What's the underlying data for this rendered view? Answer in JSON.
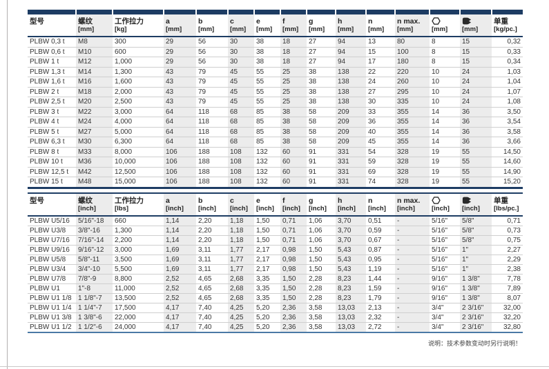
{
  "note": "说明：技术参数变动时另行说明！",
  "tables": [
    {
      "name": "metric",
      "segmented_top_bar": true,
      "columns": [
        {
          "id": "model",
          "label": "型号",
          "unit": ""
        },
        {
          "id": "thread",
          "label": "螺纹",
          "unit": "[mm]"
        },
        {
          "id": "working-load",
          "label": "工作拉力",
          "unit": "[kg]"
        },
        {
          "id": "a",
          "label": "a",
          "unit": "[mm]"
        },
        {
          "id": "b",
          "label": "b",
          "unit": "[mm]"
        },
        {
          "id": "c",
          "label": "c",
          "unit": "[mm]"
        },
        {
          "id": "e",
          "label": "e",
          "unit": "[mm]"
        },
        {
          "id": "f",
          "label": "f",
          "unit": "[mm]"
        },
        {
          "id": "g",
          "label": "g",
          "unit": "[mm]"
        },
        {
          "id": "h",
          "label": "h",
          "unit": "[mm]"
        },
        {
          "id": "n",
          "label": "n",
          "unit": "[mm]"
        },
        {
          "id": "n-max",
          "label": "n max.",
          "unit": "[mm]"
        },
        {
          "id": "hex-socket",
          "icon": "hexagon",
          "unit": "[mm]"
        },
        {
          "id": "wrench-size",
          "icon": "wrench",
          "unit": "[mm]"
        },
        {
          "id": "unit-weight",
          "label": "单重",
          "unit": "[kg/pc.]"
        }
      ],
      "rows": [
        [
          "PLBW 0,3 t",
          "M8",
          "300",
          "29",
          "56",
          "30",
          "38",
          "18",
          "27",
          "94",
          "13",
          "80",
          "8",
          "15",
          "0,32"
        ],
        [
          "PLBW 0,6 t",
          "M10",
          "600",
          "29",
          "56",
          "30",
          "38",
          "18",
          "27",
          "94",
          "15",
          "100",
          "8",
          "15",
          "0,33"
        ],
        [
          "PLBW 1 t",
          "M12",
          "1,000",
          "29",
          "56",
          "30",
          "38",
          "18",
          "27",
          "94",
          "17",
          "180",
          "8",
          "15",
          "0,34"
        ],
        [
          "PLBW 1,3 t",
          "M14",
          "1,300",
          "43",
          "79",
          "45",
          "55",
          "25",
          "38",
          "138",
          "22",
          "220",
          "10",
          "24",
          "1,03"
        ],
        [
          "PLBW 1,6 t",
          "M16",
          "1,600",
          "43",
          "79",
          "45",
          "55",
          "25",
          "38",
          "138",
          "24",
          "260",
          "10",
          "24",
          "1,04"
        ],
        [
          "PLBW 2 t",
          "M18",
          "2,000",
          "43",
          "79",
          "45",
          "55",
          "25",
          "38",
          "138",
          "27",
          "295",
          "10",
          "24",
          "1,07"
        ],
        [
          "PLBW 2,5 t",
          "M20",
          "2,500",
          "43",
          "79",
          "45",
          "55",
          "25",
          "38",
          "138",
          "30",
          "335",
          "10",
          "24",
          "1,08"
        ],
        [
          "PLBW 3 t",
          "M22",
          "3,000",
          "64",
          "118",
          "68",
          "85",
          "38",
          "58",
          "209",
          "33",
          "355",
          "14",
          "36",
          "3,50"
        ],
        [
          "PLBW 4 t",
          "M24",
          "4,000",
          "64",
          "118",
          "68",
          "85",
          "38",
          "58",
          "209",
          "36",
          "355",
          "14",
          "36",
          "3,54"
        ],
        [
          "PLBW 5 t",
          "M27",
          "5,000",
          "64",
          "118",
          "68",
          "85",
          "38",
          "58",
          "209",
          "40",
          "355",
          "14",
          "36",
          "3,58"
        ],
        [
          "PLBW 6,3 t",
          "M30",
          "6,300",
          "64",
          "118",
          "68",
          "85",
          "38",
          "58",
          "209",
          "45",
          "355",
          "14",
          "36",
          "3,66"
        ],
        [
          "PLBW 8 t",
          "M33",
          "8,000",
          "106",
          "188",
          "108",
          "132",
          "60",
          "91",
          "331",
          "54",
          "328",
          "19",
          "55",
          "14,50"
        ],
        [
          "PLBW 10 t",
          "M36",
          "10,000",
          "106",
          "188",
          "108",
          "132",
          "60",
          "91",
          "331",
          "59",
          "328",
          "19",
          "55",
          "14,60"
        ],
        [
          "PLBW 12,5 t",
          "M42",
          "12,500",
          "106",
          "188",
          "108",
          "132",
          "60",
          "91",
          "331",
          "69",
          "328",
          "19",
          "55",
          "14,90"
        ],
        [
          "PLBW 15 t",
          "M48",
          "15,000",
          "106",
          "188",
          "108",
          "132",
          "60",
          "91",
          "331",
          "74",
          "328",
          "19",
          "55",
          "15,20"
        ]
      ]
    },
    {
      "name": "imperial",
      "segmented_top_bar": false,
      "columns": [
        {
          "id": "model",
          "label": "型号",
          "unit": ""
        },
        {
          "id": "thread",
          "label": "螺纹",
          "unit": "[inch]"
        },
        {
          "id": "working-load",
          "label": "工作拉力",
          "unit": "[lbs]"
        },
        {
          "id": "a",
          "label": "a",
          "unit": "[inch]"
        },
        {
          "id": "b",
          "label": "b",
          "unit": "[inch]"
        },
        {
          "id": "c",
          "label": "c",
          "unit": "[inch]"
        },
        {
          "id": "e",
          "label": "e",
          "unit": "[inch]"
        },
        {
          "id": "f",
          "label": "f",
          "unit": "[inch]"
        },
        {
          "id": "g",
          "label": "g",
          "unit": "[inch]"
        },
        {
          "id": "h",
          "label": "h",
          "unit": "[inch]"
        },
        {
          "id": "n",
          "label": "n",
          "unit": "[inch]"
        },
        {
          "id": "n-max",
          "label": "n max.",
          "unit": "[inch]"
        },
        {
          "id": "hex-socket",
          "icon": "hexagon",
          "unit": "[inch]"
        },
        {
          "id": "wrench-size",
          "icon": "wrench",
          "unit": "[inch]"
        },
        {
          "id": "unit-weight",
          "label": "单重",
          "unit": "[lbs/pc.]"
        }
      ],
      "rows": [
        [
          "PLBW U5/16",
          "5/16\"-18",
          "660",
          "1,14",
          "2,20",
          "1,18",
          "1,50",
          "0,71",
          "1,06",
          "3,70",
          "0,51",
          "-",
          "5/16\"",
          "5/8\"",
          "0,71"
        ],
        [
          "PLBW U3/8",
          "3/8\"-16",
          "1,300",
          "1,14",
          "2,20",
          "1,18",
          "1,50",
          "0,71",
          "1,06",
          "3,70",
          "0,59",
          "-",
          "5/16\"",
          "5/8\"",
          "0,73"
        ],
        [
          "PLBW U7/16",
          "7/16\"-14",
          "2,200",
          "1,14",
          "2,20",
          "1,18",
          "1,50",
          "0,71",
          "1,06",
          "3,70",
          "0,67",
          "-",
          "5/16\"",
          "5/8\"",
          "0,75"
        ],
        [
          "PLBW U9/16",
          "9/16\"-12",
          "3,000",
          "1,69",
          "3,11",
          "1,77",
          "2,17",
          "0,98",
          "1,50",
          "5,43",
          "0,87",
          "-",
          "5/16\"",
          "1\"",
          "2,27"
        ],
        [
          "PLBW U5/8",
          "5/8\"-11",
          "3,500",
          "1,69",
          "3,11",
          "1,77",
          "2,17",
          "0,98",
          "1,50",
          "5,43",
          "0,95",
          "-",
          "5/16\"",
          "1\"",
          "2,29"
        ],
        [
          "PLBW U3/4",
          "3/4\"-10",
          "5,500",
          "1,69",
          "3,11",
          "1,77",
          "2,17",
          "0,98",
          "1,50",
          "5,43",
          "1,19",
          "-",
          "5/16\"",
          "1\"",
          "2,38"
        ],
        [
          "PLBW U7/8",
          "7/8\"-9",
          "8,800",
          "2,52",
          "4,65",
          "2,68",
          "3,35",
          "1,50",
          "2,28",
          "8,23",
          "1,44",
          "-",
          "9/16\"",
          "1 3/8\"",
          "7,78"
        ],
        [
          "PLBW U1",
          "1\"-8",
          "11,000",
          "2,52",
          "4,65",
          "2,68",
          "3,35",
          "1,50",
          "2,28",
          "8,23",
          "1,59",
          "-",
          "9/16\"",
          "1 3/8\"",
          "7,89"
        ],
        [
          "PLBW U1 1/8",
          "1 1/8\"-7",
          "13,500",
          "2,52",
          "4,65",
          "2,68",
          "3,35",
          "1,50",
          "2,28",
          "8,23",
          "1,79",
          "-",
          "9/16\"",
          "1 3/8\"",
          "8,07"
        ],
        [
          "PLBW U1 1/4",
          "1 1/4\"-7",
          "17,500",
          "4,17",
          "7,40",
          "4,25",
          "5,20",
          "2,36",
          "3,58",
          "13,03",
          "2,13",
          "-",
          "3/4\"",
          "2 3/16\"",
          "32,00"
        ],
        [
          "PLBW U1 3/8",
          "1 3/8\"-6",
          "22,000",
          "4,17",
          "7,40",
          "4,25",
          "5,20",
          "2,36",
          "3,58",
          "13,03",
          "2,32",
          "-",
          "3/4\"",
          "2 3/16\"",
          "32,20"
        ],
        [
          "PLBW U1 1/2",
          "1 1/2\"-6",
          "24,000",
          "4,17",
          "7,40",
          "4,25",
          "5,20",
          "2,36",
          "3,58",
          "13,03",
          "2,72",
          "-",
          "3/4\"",
          "2 3/16\"",
          "32,80"
        ]
      ]
    }
  ],
  "colors": {
    "navy_header": "#1d3c63",
    "imperial_bottom_rule": "#4a79a5",
    "column_stripe": "#ececec",
    "row_rule": "#cfcfcf"
  },
  "icons": {
    "hexagon": "hexagon-socket-size-symbol",
    "wrench": "open-end-wrench-size-symbol"
  }
}
